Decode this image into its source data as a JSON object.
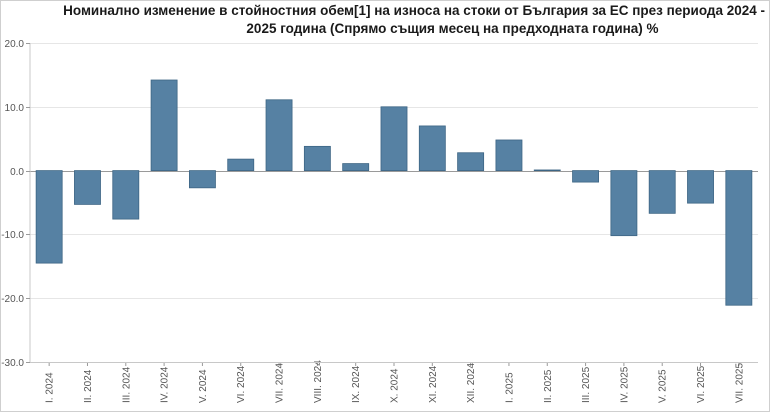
{
  "chart_data": {
    "type": "bar",
    "title_line1": "Номинално изменение в стойностния обем[1] на износа на стоки от България за ЕС през периода 2024 -",
    "title_line2": "2025 година (Спрямо същия месец на предходната година) %",
    "categories": [
      "I. 2024",
      "II. 2024",
      "III. 2024",
      "IV. 2024",
      "V. 2024",
      "VI. 2024",
      "VII. 2024",
      "VIII. 2024",
      "IX. 2024",
      "X. 2024",
      "XI. 2024",
      "XII. 2024",
      "I. 2025",
      "II. 2025",
      "III. 2025",
      "IV. 2025",
      "V. 2025",
      "VI. 2025",
      "VII. 2025"
    ],
    "values": [
      -14.5,
      -5.3,
      -7.6,
      14.2,
      -2.7,
      1.8,
      11.1,
      3.8,
      1.1,
      10.0,
      7.0,
      2.8,
      4.8,
      0.1,
      -1.8,
      -10.2,
      -6.7,
      -5.1,
      -21.1
    ],
    "yticks": [
      "20.0",
      "10.0",
      "0.0",
      "-10.0",
      "-20.0",
      "-30.0"
    ],
    "ylim": [
      -30,
      20
    ],
    "grid": true,
    "bar_color": "#5681a3",
    "bar_edge_color": "#3d6584",
    "xlabel": "",
    "ylabel": ""
  }
}
